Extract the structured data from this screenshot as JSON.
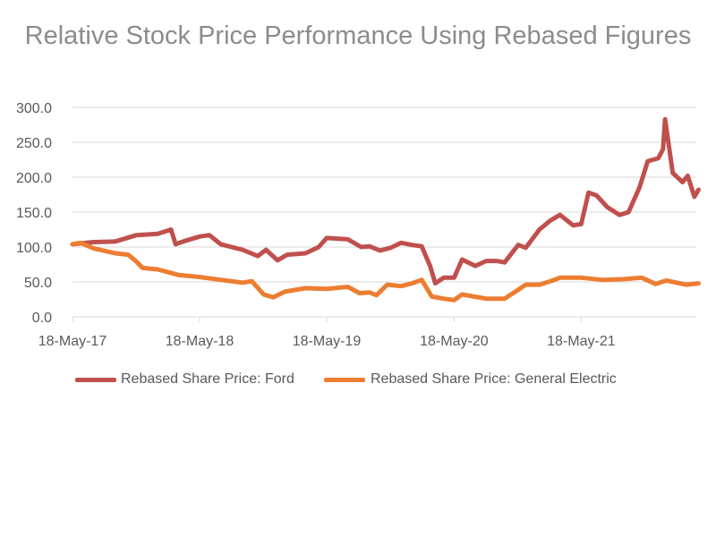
{
  "chart_data": {
    "type": "line",
    "title": "Relative Stock Price Performance Using Rebased Figures",
    "xlabel": "",
    "ylabel": "",
    "ylim": [
      0,
      300
    ],
    "yticks": [
      "0.0",
      "50.0",
      "100.0",
      "150.0",
      "200.0",
      "250.0",
      "300.0"
    ],
    "xticks": [
      {
        "date": "2017-05-18",
        "label": "18-May-17"
      },
      {
        "date": "2018-05-18",
        "label": "18-May-18"
      },
      {
        "date": "2019-05-18",
        "label": "18-May-19"
      },
      {
        "date": "2020-05-18",
        "label": "18-May-20"
      },
      {
        "date": "2021-05-18",
        "label": "18-May-21"
      }
    ],
    "xlim": [
      "2017-05-18",
      "2022-04-20"
    ],
    "grid": "horizontal",
    "legend_position": "bottom",
    "series": [
      {
        "name": "Rebased Share Price: Ford",
        "color": "#C0504D",
        "points": [
          [
            "2017-05-18",
            104
          ],
          [
            "2017-07-18",
            107
          ],
          [
            "2017-09-18",
            108
          ],
          [
            "2017-11-18",
            117
          ],
          [
            "2018-01-18",
            119
          ],
          [
            "2018-02-25",
            125
          ],
          [
            "2018-03-10",
            104
          ],
          [
            "2018-04-01",
            108
          ],
          [
            "2018-05-18",
            115
          ],
          [
            "2018-06-15",
            117
          ],
          [
            "2018-07-18",
            104
          ],
          [
            "2018-09-18",
            96
          ],
          [
            "2018-11-01",
            87
          ],
          [
            "2018-11-25",
            96
          ],
          [
            "2018-12-28",
            81
          ],
          [
            "2019-01-25",
            89
          ],
          [
            "2019-03-18",
            91
          ],
          [
            "2019-04-25",
            100
          ],
          [
            "2019-05-18",
            113
          ],
          [
            "2019-07-18",
            111
          ],
          [
            "2019-08-25",
            100
          ],
          [
            "2019-09-18",
            101
          ],
          [
            "2019-10-18",
            95
          ],
          [
            "2019-11-18",
            99
          ],
          [
            "2019-12-18",
            106
          ],
          [
            "2020-01-18",
            103
          ],
          [
            "2020-02-15",
            101
          ],
          [
            "2020-03-10",
            73
          ],
          [
            "2020-03-25",
            48
          ],
          [
            "2020-04-18",
            56
          ],
          [
            "2020-05-18",
            56
          ],
          [
            "2020-06-10",
            82
          ],
          [
            "2020-07-18",
            73
          ],
          [
            "2020-08-18",
            80
          ],
          [
            "2020-09-18",
            80
          ],
          [
            "2020-10-10",
            78
          ],
          [
            "2020-11-18",
            103
          ],
          [
            "2020-12-10",
            99
          ],
          [
            "2021-01-18",
            125
          ],
          [
            "2021-02-18",
            138
          ],
          [
            "2021-03-18",
            146
          ],
          [
            "2021-04-25",
            131
          ],
          [
            "2021-05-18",
            133
          ],
          [
            "2021-06-08",
            178
          ],
          [
            "2021-07-01",
            174
          ],
          [
            "2021-08-01",
            157
          ],
          [
            "2021-09-05",
            146
          ],
          [
            "2021-10-01",
            150
          ],
          [
            "2021-11-01",
            185
          ],
          [
            "2021-11-25",
            223
          ],
          [
            "2021-12-25",
            227
          ],
          [
            "2022-01-08",
            240
          ],
          [
            "2022-01-14",
            283
          ],
          [
            "2022-02-05",
            206
          ],
          [
            "2022-03-05",
            193
          ],
          [
            "2022-03-20",
            202
          ],
          [
            "2022-04-08",
            172
          ],
          [
            "2022-04-20",
            182
          ]
        ]
      },
      {
        "name": "Rebased Share Price: General Electric",
        "color": "#ED7D31",
        "points": [
          [
            "2017-05-18",
            104
          ],
          [
            "2017-06-10",
            106
          ],
          [
            "2017-07-18",
            98
          ],
          [
            "2017-09-18",
            91
          ],
          [
            "2017-10-25",
            89
          ],
          [
            "2017-11-18",
            79
          ],
          [
            "2017-12-05",
            70
          ],
          [
            "2018-01-18",
            68
          ],
          [
            "2018-03-18",
            60
          ],
          [
            "2018-05-18",
            57
          ],
          [
            "2018-07-18",
            53
          ],
          [
            "2018-09-18",
            49
          ],
          [
            "2018-10-15",
            51
          ],
          [
            "2018-11-18",
            32
          ],
          [
            "2018-12-15",
            28
          ],
          [
            "2019-01-18",
            36
          ],
          [
            "2019-03-18",
            41
          ],
          [
            "2019-05-18",
            40
          ],
          [
            "2019-07-18",
            43
          ],
          [
            "2019-08-20",
            34
          ],
          [
            "2019-09-18",
            35
          ],
          [
            "2019-10-08",
            31
          ],
          [
            "2019-11-08",
            46
          ],
          [
            "2019-12-18",
            44
          ],
          [
            "2020-01-18",
            48
          ],
          [
            "2020-02-15",
            53
          ],
          [
            "2020-03-15",
            29
          ],
          [
            "2020-04-18",
            26
          ],
          [
            "2020-05-18",
            24
          ],
          [
            "2020-06-10",
            32
          ],
          [
            "2020-08-18",
            26
          ],
          [
            "2020-10-10",
            26
          ],
          [
            "2020-11-25",
            41
          ],
          [
            "2020-12-10",
            46
          ],
          [
            "2021-01-18",
            46
          ],
          [
            "2021-02-25",
            52
          ],
          [
            "2021-03-18",
            56
          ],
          [
            "2021-05-18",
            56
          ],
          [
            "2021-07-18",
            53
          ],
          [
            "2021-09-18",
            54
          ],
          [
            "2021-11-08",
            56
          ],
          [
            "2021-12-18",
            47
          ],
          [
            "2022-01-18",
            52
          ],
          [
            "2022-03-15",
            46
          ],
          [
            "2022-04-20",
            48
          ]
        ]
      }
    ]
  }
}
